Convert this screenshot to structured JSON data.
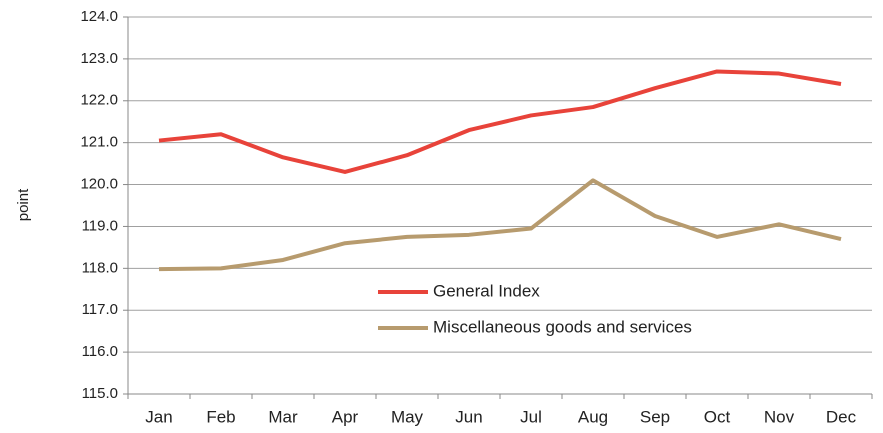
{
  "chart_data": {
    "type": "line",
    "y_label": "point",
    "categories": [
      "Jan",
      "Feb",
      "Mar",
      "Apr",
      "May",
      "Jun",
      "Jul",
      "Aug",
      "Sep",
      "Oct",
      "Nov",
      "Dec"
    ],
    "series": [
      {
        "name": "General Index",
        "color": "#e8433a",
        "values": [
          121.05,
          121.2,
          120.65,
          120.3,
          120.7,
          121.3,
          121.65,
          121.85,
          122.3,
          122.7,
          122.65,
          122.4
        ]
      },
      {
        "name": "Miscellaneous goods and services",
        "color": "#b79b6e",
        "values": [
          117.98,
          118.0,
          118.2,
          118.6,
          118.75,
          118.8,
          118.95,
          120.1,
          119.25,
          118.75,
          119.05,
          118.7
        ]
      }
    ],
    "ylim": [
      115,
      124
    ],
    "yticks": [
      {
        "value": 115,
        "label": "115.0"
      },
      {
        "value": 116,
        "label": "116.0"
      },
      {
        "value": 117,
        "label": "117.0"
      },
      {
        "value": 118,
        "label": "118.0"
      },
      {
        "value": 119,
        "label": "119.0"
      },
      {
        "value": 120,
        "label": "120.0"
      },
      {
        "value": 121,
        "label": "121.0"
      },
      {
        "value": 122,
        "label": "122.0"
      },
      {
        "value": 123,
        "label": "123.0"
      },
      {
        "value": 124,
        "label": "124.0"
      }
    ],
    "grid": true
  }
}
